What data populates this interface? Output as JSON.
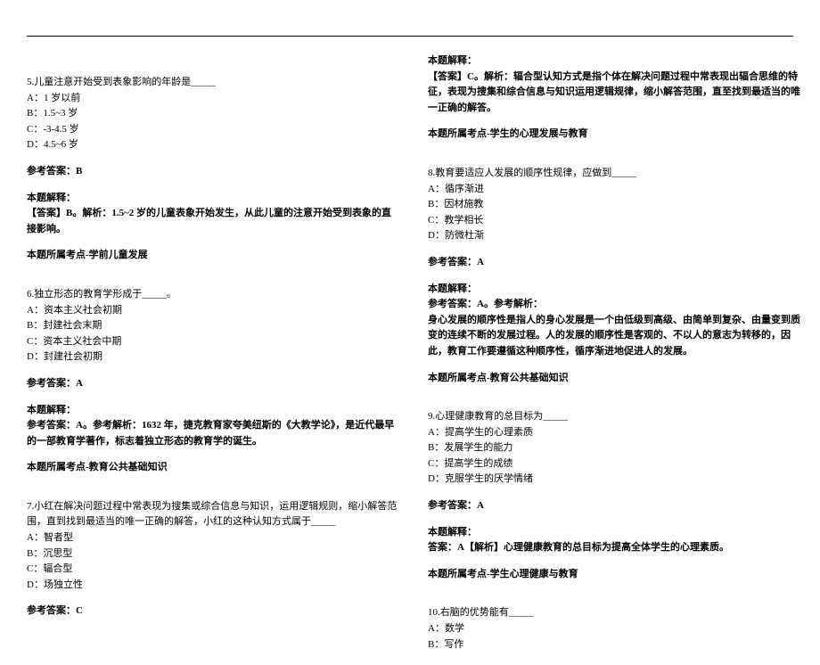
{
  "left": {
    "q5": {
      "text": "5.儿童注意开始受到表象影响的年龄是_____",
      "opts": [
        "A：1 岁以前",
        "B：1.5~3 岁",
        "C：-3-4.5 岁",
        "D：4.5~6 岁"
      ],
      "ansLabel": "参考答案：B",
      "explainLabel": "本题解释：",
      "explain": "【答案】B。解析：1.5~2 岁的儿童表象开始发生，从此儿童的注意开始受到表象的直接影响。",
      "point": "本题所属考点-学前儿童发展"
    },
    "q6": {
      "text": "6.独立形态的教育学形成于_____。",
      "opts": [
        "A：资本主义社会初期",
        "B：封建社会末期",
        "C：资本主义社会中期",
        "D：封建社会初期"
      ],
      "ansLabel": "参考答案：A",
      "explainLabel": "本题解释：",
      "explain": "参考答案：A。参考解析：1632 年，捷克教育家夸美纽斯的《大教学论》，是近代最早的一部教育学著作，标志着独立形态的教育学的诞生。",
      "point": "本题所属考点-教育公共基础知识"
    },
    "q7": {
      "text": "7.小红在解决问题过程中常表现为搜集或综合信息与知识，运用逻辑规则，缩小解答范围，直到找到最适当的唯一正确的解答，小红的这种认知方式属于_____",
      "opts": [
        "A：智者型",
        "B：沉思型",
        "C：辐合型",
        "D：场独立性"
      ],
      "ansLabel": "参考答案：C"
    }
  },
  "right": {
    "q7cont": {
      "explainLabel": "本题解释：",
      "explain": "【答案】C。解析：辐合型认知方式是指个体在解决问题过程中常表现出辐合思维的特征，表现为搜集和综合信息与知识运用逻辑规律，缩小解答范围，直至找到最适当的唯一正确的解答。",
      "point": "本题所属考点-学生的心理发展与教育"
    },
    "q8": {
      "text": "8.教育要适应人发展的顺序性规律，应做到_____",
      "opts": [
        "A：循序渐进",
        "B：因材施教",
        "C：教学相长",
        "D：防微杜渐"
      ],
      "ansLabel": "参考答案：A",
      "explainLabel": "本题解释：",
      "explainHead": "参考答案：A。参考解析：",
      "explain": "身心发展的顺序性是指人的身心发展是一个由低级到高级、由简单到复杂、由量变到质变的连续不断的发展过程。人的发展的顺序性是客观的、不以人的意志为转移的，因此，教育工作要遵循这种顺序性，循序渐进地促进人的发展。",
      "point": "本题所属考点-教育公共基础知识"
    },
    "q9": {
      "text": "9.心理健康教育的总目标为_____",
      "opts": [
        "A：提高学生的心理素质",
        "B：发展学生的能力",
        "C：提高学生的成绩",
        "D：克服学生的厌学情绪"
      ],
      "ansLabel": "参考答案：A",
      "explainLabel": "本题解释：",
      "explain": "答案：A【解析】心理健康教育的总目标为提高全体学生的心理素质。",
      "point": "本题所属考点-学生心理健康与教育"
    },
    "q10": {
      "text": "10.右脑的优势能有_____",
      "opts": [
        "A：数学",
        "B：写作"
      ]
    }
  }
}
